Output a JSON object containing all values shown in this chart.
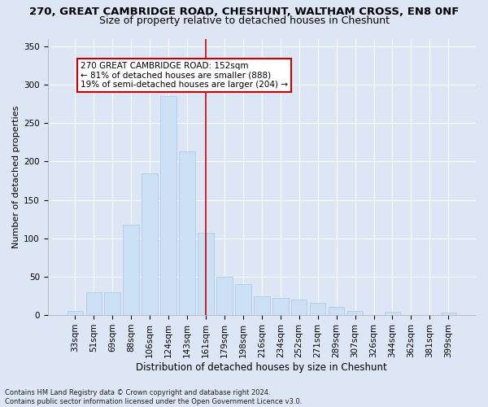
{
  "title1": "270, GREAT CAMBRIDGE ROAD, CHESHUNT, WALTHAM CROSS, EN8 0NF",
  "title2": "Size of property relative to detached houses in Cheshunt",
  "xlabel": "Distribution of detached houses by size in Cheshunt",
  "ylabel": "Number of detached properties",
  "categories": [
    "33sqm",
    "51sqm",
    "69sqm",
    "88sqm",
    "106sqm",
    "124sqm",
    "143sqm",
    "161sqm",
    "179sqm",
    "198sqm",
    "216sqm",
    "234sqm",
    "252sqm",
    "271sqm",
    "289sqm",
    "307sqm",
    "326sqm",
    "344sqm",
    "362sqm",
    "381sqm",
    "399sqm"
  ],
  "values": [
    5,
    30,
    30,
    118,
    185,
    285,
    213,
    107,
    50,
    40,
    25,
    22,
    20,
    16,
    11,
    5,
    0,
    4,
    0,
    0,
    3
  ],
  "bar_color": "#cce0f5",
  "bar_edge_color": "#a8c8e8",
  "vline_x": 6.98,
  "vline_color": "#cc0000",
  "annotation_text": "270 GREAT CAMBRIDGE ROAD: 152sqm\n← 81% of detached houses are smaller (888)\n19% of semi-detached houses are larger (204) →",
  "annotation_box_facecolor": "#ffffff",
  "annotation_box_edgecolor": "#cc0000",
  "ylim": [
    0,
    360
  ],
  "yticks": [
    0,
    50,
    100,
    150,
    200,
    250,
    300,
    350
  ],
  "bg_color": "#dce6f5",
  "plot_bg_color": "#dce6f5",
  "footnote": "Contains HM Land Registry data © Crown copyright and database right 2024.\nContains public sector information licensed under the Open Government Licence v3.0.",
  "title1_fontsize": 9.5,
  "title2_fontsize": 9,
  "xlabel_fontsize": 8.5,
  "ylabel_fontsize": 8,
  "tick_fontsize": 7.5,
  "annot_fontsize": 7.5,
  "footnote_fontsize": 6
}
